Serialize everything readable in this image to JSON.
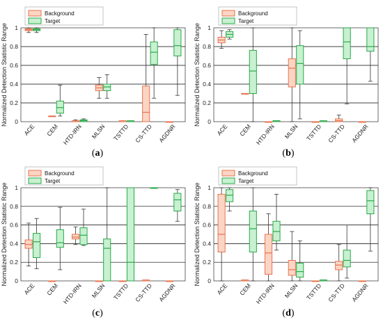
{
  "chart_data": [
    {
      "type": "box",
      "panel_label": "a",
      "ylabel": "Normalized Detection Statistic Range",
      "ylim": [
        0,
        1
      ],
      "yticks": [
        "0",
        "0.2",
        "0.4",
        "0.6",
        "0.8",
        "1"
      ],
      "categories": [
        "ACE",
        "CEM",
        "HTD-IRN",
        "MLSN",
        "TSTTD",
        "CS-TTD",
        "AGDNR"
      ],
      "legend": [
        "Background",
        "Target"
      ],
      "legend_position": "top-right",
      "grid": "horizontal",
      "series": [
        {
          "name": "Background",
          "boxes": [
            {
              "min": 0.95,
              "q1": 0.97,
              "median": 0.98,
              "q3": 0.99,
              "max": 1.0
            },
            {
              "min": 0.06,
              "q1": 0.06,
              "median": 0.06,
              "q3": 0.06,
              "max": 0.06
            },
            {
              "min": 0.0,
              "q1": 0.0,
              "median": 0.0,
              "q3": 0.01,
              "max": 0.02
            },
            {
              "min": 0.25,
              "q1": 0.33,
              "median": 0.36,
              "q3": 0.39,
              "max": 0.47
            },
            {
              "min": 0.0,
              "q1": 0.0,
              "median": 0.0,
              "q3": 0.01,
              "max": 0.01
            },
            {
              "min": 0.0,
              "q1": 0.0,
              "median": 0.1,
              "q3": 0.38,
              "max": 0.93
            },
            {
              "min": 0.0,
              "q1": 0.0,
              "median": 0.0,
              "q3": 0.0,
              "max": 0.0
            }
          ]
        },
        {
          "name": "Target",
          "boxes": [
            {
              "min": 0.95,
              "q1": 0.97,
              "median": 0.98,
              "q3": 0.99,
              "max": 1.0
            },
            {
              "min": 0.06,
              "q1": 0.09,
              "median": 0.15,
              "q3": 0.22,
              "max": 0.39
            },
            {
              "min": 0.0,
              "q1": 0.0,
              "median": 0.01,
              "q3": 0.02,
              "max": 0.03
            },
            {
              "min": 0.25,
              "q1": 0.33,
              "median": 0.37,
              "q3": 0.4,
              "max": 0.5
            },
            {
              "min": 0.0,
              "q1": 0.0,
              "median": 0.0,
              "q3": 0.01,
              "max": 0.01
            },
            {
              "min": 0.25,
              "q1": 0.61,
              "median": 0.74,
              "q3": 0.85,
              "max": 1.0
            },
            {
              "min": 0.28,
              "q1": 0.7,
              "median": 0.81,
              "q3": 0.98,
              "max": 1.0
            }
          ]
        }
      ]
    },
    {
      "type": "box",
      "panel_label": "b",
      "ylabel": "Normalized Detection Statistic Range",
      "ylim": [
        0,
        1
      ],
      "yticks": [
        "0",
        "0.2",
        "0.4",
        "0.6",
        "0.8",
        "1"
      ],
      "categories": [
        "ACE",
        "CEM",
        "HTD-IRN",
        "MLSN",
        "TSTTD",
        "CS-TTD",
        "AGDNR"
      ],
      "legend": [
        "Background",
        "Target"
      ],
      "legend_position": "top-right",
      "grid": "horizontal",
      "series": [
        {
          "name": "Background",
          "boxes": [
            {
              "min": 0.78,
              "q1": 0.84,
              "median": 0.87,
              "q3": 0.9,
              "max": 0.97
            },
            {
              "min": 0.3,
              "q1": 0.3,
              "median": 0.3,
              "q3": 0.3,
              "max": 0.3
            },
            {
              "min": 0.0,
              "q1": 0.0,
              "median": 0.0,
              "q3": 0.0,
              "max": 0.0
            },
            {
              "min": 0.0,
              "q1": 0.37,
              "median": 0.57,
              "q3": 0.67,
              "max": 1.0
            },
            {
              "min": 0.0,
              "q1": 0.0,
              "median": 0.0,
              "q3": 0.0,
              "max": 0.0
            },
            {
              "min": 0.0,
              "q1": 0.0,
              "median": 0.01,
              "q3": 0.03,
              "max": 0.07
            },
            {
              "min": 0.0,
              "q1": 0.0,
              "median": 0.0,
              "q3": 0.0,
              "max": 0.0
            }
          ]
        },
        {
          "name": "Target",
          "boxes": [
            {
              "min": 0.88,
              "q1": 0.9,
              "median": 0.93,
              "q3": 0.96,
              "max": 0.98
            },
            {
              "min": 0.0,
              "q1": 0.3,
              "median": 0.54,
              "q3": 0.76,
              "max": 1.0
            },
            {
              "min": 0.0,
              "q1": 0.0,
              "median": 0.01,
              "q3": 0.01,
              "max": 0.01
            },
            {
              "min": 0.03,
              "q1": 0.4,
              "median": 0.62,
              "q3": 0.81,
              "max": 0.97
            },
            {
              "min": 0.0,
              "q1": 0.0,
              "median": 0.0,
              "q3": 0.01,
              "max": 0.01
            },
            {
              "min": 0.19,
              "q1": 0.67,
              "median": 0.85,
              "q3": 1.0,
              "max": 1.0
            },
            {
              "min": 0.43,
              "q1": 0.75,
              "median": 0.8,
              "q3": 1.0,
              "max": 1.0
            }
          ]
        }
      ]
    },
    {
      "type": "box",
      "panel_label": "c",
      "ylabel": "Normalized Detection Statistic Range",
      "ylim": [
        0,
        1
      ],
      "yticks": [
        "0",
        "0.2",
        "0.4",
        "0.6",
        "0.8",
        "1"
      ],
      "categories": [
        "ACE",
        "CEM",
        "HTD-IRN",
        "MLSN",
        "TSTTD",
        "CS-TTD",
        "AGDNR"
      ],
      "legend": [
        "Background",
        "Target"
      ],
      "legend_position": "top-right",
      "grid": "horizontal",
      "series": [
        {
          "name": "Background",
          "boxes": [
            {
              "min": 0.16,
              "q1": 0.35,
              "median": 0.39,
              "q3": 0.44,
              "max": 0.62
            },
            {
              "min": 0.0,
              "q1": 0.0,
              "median": 0.0,
              "q3": 0.0,
              "max": 0.0
            },
            {
              "min": 0.39,
              "q1": 0.45,
              "median": 0.47,
              "q3": 0.5,
              "max": 0.58
            },
            {
              "min": 0.0,
              "q1": 0.0,
              "median": 0.0,
              "q3": 0.0,
              "max": 0.0
            },
            {
              "min": 0.0,
              "q1": 0.0,
              "median": 0.0,
              "q3": 0.0,
              "max": 0.0
            },
            {
              "min": 0.0,
              "q1": 0.0,
              "median": 0.0,
              "q3": 0.01,
              "max": 0.01
            },
            {
              "min": 0.0,
              "q1": 0.0,
              "median": 0.0,
              "q3": 0.0,
              "max": 0.0
            }
          ]
        },
        {
          "name": "Target",
          "boxes": [
            {
              "min": 0.13,
              "q1": 0.25,
              "median": 0.42,
              "q3": 0.51,
              "max": 0.67
            },
            {
              "min": 0.12,
              "q1": 0.36,
              "median": 0.41,
              "q3": 0.55,
              "max": 0.79
            },
            {
              "min": 0.38,
              "q1": 0.39,
              "median": 0.49,
              "q3": 0.57,
              "max": 0.77
            },
            {
              "min": 0.0,
              "q1": 0.0,
              "median": 0.35,
              "q3": 0.45,
              "max": 1.0
            },
            {
              "min": 0.0,
              "q1": 0.0,
              "median": 0.2,
              "q3": 1.0,
              "max": 1.0
            },
            {
              "min": 1.0,
              "q1": 1.0,
              "median": 1.0,
              "q3": 1.0,
              "max": 1.0
            },
            {
              "min": 0.64,
              "q1": 0.75,
              "median": 0.87,
              "q3": 0.94,
              "max": 0.98
            }
          ]
        }
      ]
    },
    {
      "type": "box",
      "panel_label": "d",
      "ylabel": "Normalized Detection Statistic Range",
      "ylim": [
        0,
        1
      ],
      "yticks": [
        "0",
        "0.2",
        "0.4",
        "0.6",
        "0.8",
        "1"
      ],
      "categories": [
        "ACE",
        "CEM",
        "HTD-IRN",
        "MLSN",
        "TSTTD",
        "CS-TTD",
        "AGDNR"
      ],
      "legend": [
        "Background",
        "Target"
      ],
      "legend_position": "top-left",
      "grid": "horizontal",
      "series": [
        {
          "name": "Background",
          "boxes": [
            {
              "min": 0.0,
              "q1": 0.31,
              "median": 0.5,
              "q3": 0.93,
              "max": 1.0
            },
            {
              "min": 0.0,
              "q1": 0.0,
              "median": 0.0,
              "q3": 0.01,
              "max": 0.01
            },
            {
              "min": 0.0,
              "q1": 0.07,
              "median": 0.3,
              "q3": 0.5,
              "max": 0.72
            },
            {
              "min": 0.0,
              "q1": 0.06,
              "median": 0.12,
              "q3": 0.22,
              "max": 0.53
            },
            {
              "min": 0.0,
              "q1": 0.0,
              "median": 0.0,
              "q3": 0.0,
              "max": 0.0
            },
            {
              "min": 0.0,
              "q1": 0.12,
              "median": 0.17,
              "q3": 0.21,
              "max": 0.39
            },
            {
              "min": 0.0,
              "q1": 0.0,
              "median": 0.0,
              "q3": 0.0,
              "max": 0.0
            }
          ]
        },
        {
          "name": "Target",
          "boxes": [
            {
              "min": 0.75,
              "q1": 0.85,
              "median": 0.92,
              "q3": 0.98,
              "max": 1.0
            },
            {
              "min": 0.0,
              "q1": 0.31,
              "median": 0.56,
              "q3": 0.75,
              "max": 1.0
            },
            {
              "min": 0.33,
              "q1": 0.43,
              "median": 0.53,
              "q3": 0.64,
              "max": 0.93
            },
            {
              "min": 0.0,
              "q1": 0.04,
              "median": 0.1,
              "q3": 0.19,
              "max": 0.43
            },
            {
              "min": 0.0,
              "q1": 0.0,
              "median": 0.0,
              "q3": 0.01,
              "max": 0.01
            },
            {
              "min": 0.03,
              "q1": 0.15,
              "median": 0.22,
              "q3": 0.33,
              "max": 0.6
            },
            {
              "min": 0.32,
              "q1": 0.72,
              "median": 0.86,
              "q3": 0.97,
              "max": 1.0
            }
          ]
        }
      ]
    }
  ],
  "colors": {
    "background_edge": "#e8734f",
    "background_fill": "#fbd5c4",
    "target_edge": "#2aa84a",
    "target_fill": "#c7f1d0",
    "grid": "#000000",
    "whisker": "#333333"
  }
}
